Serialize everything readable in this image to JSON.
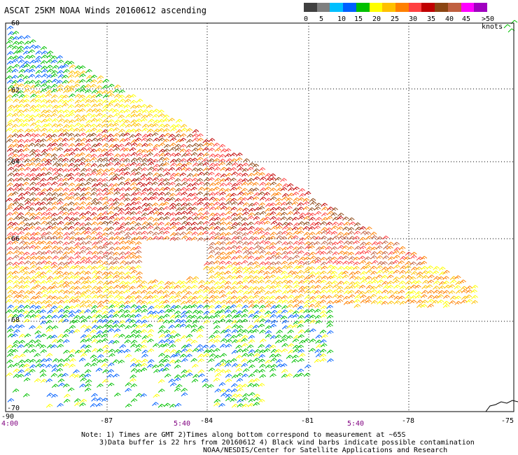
{
  "title": "ASCAT 25KM NOAA Winds 20160612 ascending",
  "colorbar": {
    "labels": [
      "0",
      "5",
      "10",
      "15",
      "20",
      "25",
      "30",
      "35",
      "40",
      "45",
      ">50 knots"
    ],
    "colors": [
      "#404040",
      "#7f7f7f",
      "#00bfff",
      "#0060ff",
      "#00c000",
      "#ffff00",
      "#ffc000",
      "#ff8000",
      "#ff4040",
      "#c00000",
      "#8b4513",
      "#c06040",
      "#ff00ff",
      "#a000c0"
    ]
  },
  "axes": {
    "lon_labels": [
      "-90",
      "-87",
      "-84",
      "-81",
      "-78",
      "-75"
    ],
    "lat_labels": [
      "-60",
      "-62",
      "-64",
      "-66",
      "-68",
      "-70"
    ],
    "lon_range": [
      -90,
      -75
    ],
    "lat_range": [
      -60,
      -70
    ]
  },
  "time_labels": [
    "4:00",
    "5:40",
    "5:40"
  ],
  "notes": {
    "line1": "Note: 1) Times are GMT 2)Times along bottom correspond to measurement at ~65S",
    "line2": "3)Data buffer is 22 hrs from 20160612 4) Black wind barbs indicate possible contamination",
    "line3": "NOAA/NESDIS/Center for Satellite Applications and Research"
  }
}
